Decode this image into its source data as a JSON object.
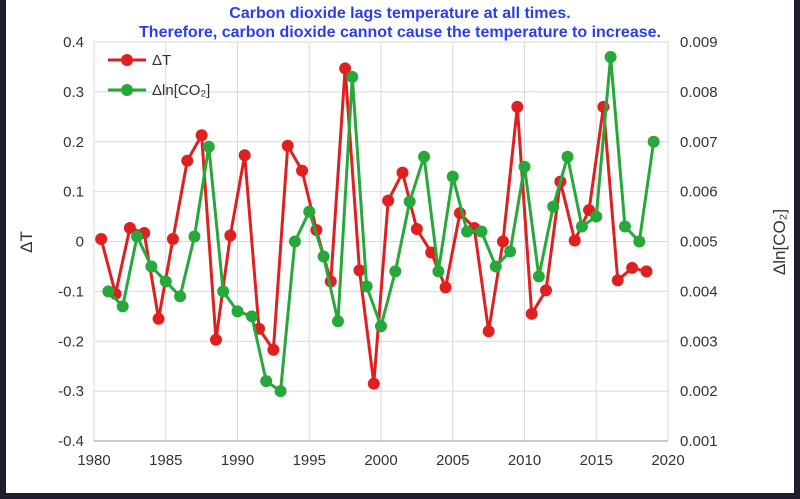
{
  "headline": {
    "line1": "Carbon dioxide lags temperature at all times.",
    "line2": "Therefore, carbon dioxide cannot cause the temperature to increase."
  },
  "colors": {
    "accent_text": "#2b3df0",
    "series_dT": "#e02020",
    "series_co2": "#27a83a",
    "grid": "#d9d9d9",
    "background_frame": "#1d1d2b"
  },
  "chart_data": {
    "type": "line",
    "title": "Carbon dioxide lags temperature at all times. Therefore, carbon dioxide cannot cause the temperature to increase.",
    "xlabel": "",
    "ylabel": "ΔT",
    "y2label": "Δln[CO₂]",
    "xlim": [
      1980,
      2020
    ],
    "ylim": [
      -0.4,
      0.4
    ],
    "y2lim": [
      0.001,
      0.009
    ],
    "x_ticks": [
      1980,
      1985,
      1990,
      1995,
      2000,
      2005,
      2010,
      2015,
      2020
    ],
    "y_ticks": [
      -0.4,
      -0.3,
      -0.2,
      -0.1,
      0,
      0.1,
      0.2,
      0.3,
      0.4
    ],
    "y_tick_labels": [
      "-0.4",
      "-0.3",
      "-0.2",
      "-0.1",
      "0",
      "0.1",
      "0.2",
      "0.3",
      "0.4"
    ],
    "y2_ticks": [
      0.001,
      0.002,
      0.003,
      0.004,
      0.005,
      0.006,
      0.007,
      0.008,
      0.009
    ],
    "y2_tick_labels": [
      "0.001",
      "0.002",
      "0.003",
      "0.004",
      "0.005",
      "0.006",
      "0.007",
      "0.008",
      "0.009"
    ],
    "grid": true,
    "legend_position": "top-left",
    "series": [
      {
        "name": "ΔT",
        "axis": "left",
        "x": [
          1980.5,
          1981.5,
          1982.5,
          1983.5,
          1984.5,
          1985.5,
          1986.5,
          1987.5,
          1988.5,
          1989.5,
          1990.5,
          1991.5,
          1992.5,
          1993.5,
          1994.5,
          1995.5,
          1996.5,
          1997.5,
          1998.5,
          1999.5,
          2000.5,
          2001.5,
          2002.5,
          2003.5,
          2004.5,
          2005.5,
          2006.5,
          2007.5,
          2008.5,
          2009.5,
          2010.5,
          2011.5,
          2012.5,
          2013.5,
          2014.5,
          2015.5,
          2016.5,
          2017.5,
          2018.5
        ],
        "values": [
          0.005,
          -0.105,
          0.027,
          0.017,
          -0.155,
          0.005,
          0.162,
          0.213,
          -0.197,
          0.012,
          0.173,
          -0.175,
          -0.217,
          0.192,
          0.142,
          0.023,
          -0.08,
          0.347,
          -0.058,
          -0.285,
          0.082,
          0.138,
          0.025,
          -0.022,
          -0.092,
          0.057,
          0.027,
          -0.18,
          0.0,
          0.27,
          -0.145,
          -0.098,
          0.12,
          0.002,
          0.063,
          0.27,
          -0.078,
          -0.053,
          -0.06
        ]
      },
      {
        "name": "Δln[CO₂]",
        "axis": "right",
        "x": [
          1981,
          1982,
          1983,
          1984,
          1985,
          1986,
          1987,
          1988,
          1989,
          1990,
          1991,
          1992,
          1993,
          1994,
          1995,
          1996,
          1997,
          1998,
          1999,
          2000,
          2001,
          2002,
          2003,
          2004,
          2005,
          2006,
          2007,
          2008,
          2009,
          2010,
          2011,
          2012,
          2013,
          2014,
          2015,
          2016,
          2017,
          2018,
          2019
        ],
        "values": [
          0.004,
          0.0037,
          0.0051,
          0.0045,
          0.0042,
          0.0039,
          0.0051,
          0.0069,
          0.004,
          0.0036,
          0.0035,
          0.0022,
          0.002,
          0.005,
          0.0056,
          0.0047,
          0.0034,
          0.0083,
          0.0041,
          0.0033,
          0.0044,
          0.0058,
          0.0067,
          0.0044,
          0.0063,
          0.0052,
          0.0052,
          0.0045,
          0.0048,
          0.0065,
          0.0043,
          0.0057,
          0.0067,
          0.0053,
          0.0055,
          0.0087,
          0.0053,
          0.005,
          0.007
        ]
      }
    ]
  }
}
